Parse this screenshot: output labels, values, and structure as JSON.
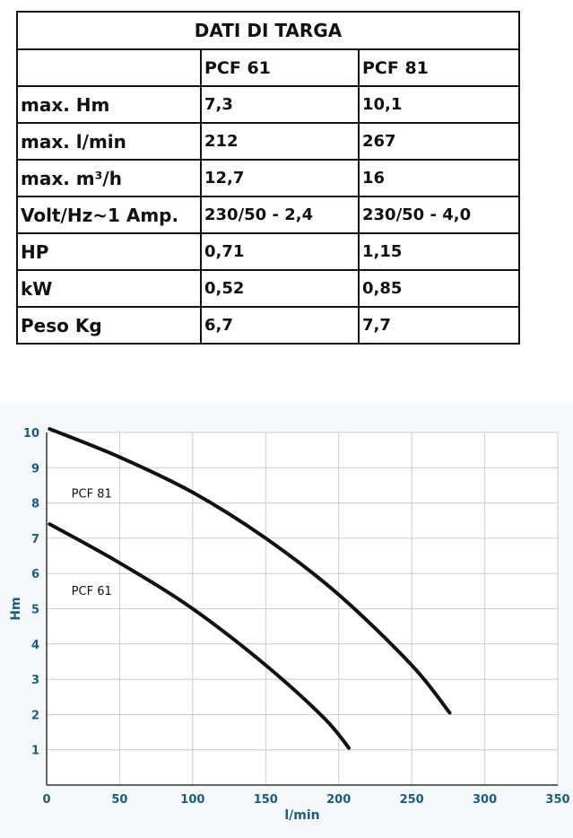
{
  "table": {
    "title": "DATI DI TARGA",
    "columns": [
      "",
      "PCF 61",
      "PCF 81"
    ],
    "rows": [
      [
        "max. Hm",
        "7,3",
        "10,1"
      ],
      [
        "max. l/min",
        "212",
        "267"
      ],
      [
        "max. m³/h",
        "12,7",
        "16"
      ],
      [
        "Volt/Hz~1 Amp.",
        "230/50 - 2,4",
        "230/50 - 4,0"
      ],
      [
        "HP",
        "0,71",
        "1,15"
      ],
      [
        "kW",
        "0,52",
        "0,85"
      ],
      [
        "Peso Kg",
        "6,7",
        "7,7"
      ]
    ]
  },
  "chart_data": {
    "type": "line",
    "xlabel": "l/min",
    "ylabel": "Hm",
    "xlim": [
      0,
      350
    ],
    "ylim": [
      0,
      10
    ],
    "xticks": [
      0,
      50,
      100,
      150,
      200,
      250,
      300,
      350
    ],
    "yticks": [
      1,
      2,
      3,
      4,
      5,
      6,
      7,
      8,
      9,
      10
    ],
    "grid": true,
    "series": [
      {
        "name": "PCF 81",
        "x": [
          2,
          50,
          100,
          150,
          200,
          250,
          276
        ],
        "y": [
          10.1,
          9.3,
          8.3,
          7.0,
          5.4,
          3.4,
          2.05
        ]
      },
      {
        "name": "PCF 61",
        "x": [
          2,
          50,
          100,
          150,
          190,
          207
        ],
        "y": [
          7.4,
          6.3,
          5.0,
          3.4,
          1.9,
          1.05
        ]
      }
    ],
    "series_label_positions": [
      [
        17,
        8.15
      ],
      [
        17,
        5.4
      ]
    ],
    "colors": {
      "line": "#111111",
      "grid": "#cccccc",
      "axis_text": "#1a5d80",
      "background": "#f5f8fb"
    }
  }
}
